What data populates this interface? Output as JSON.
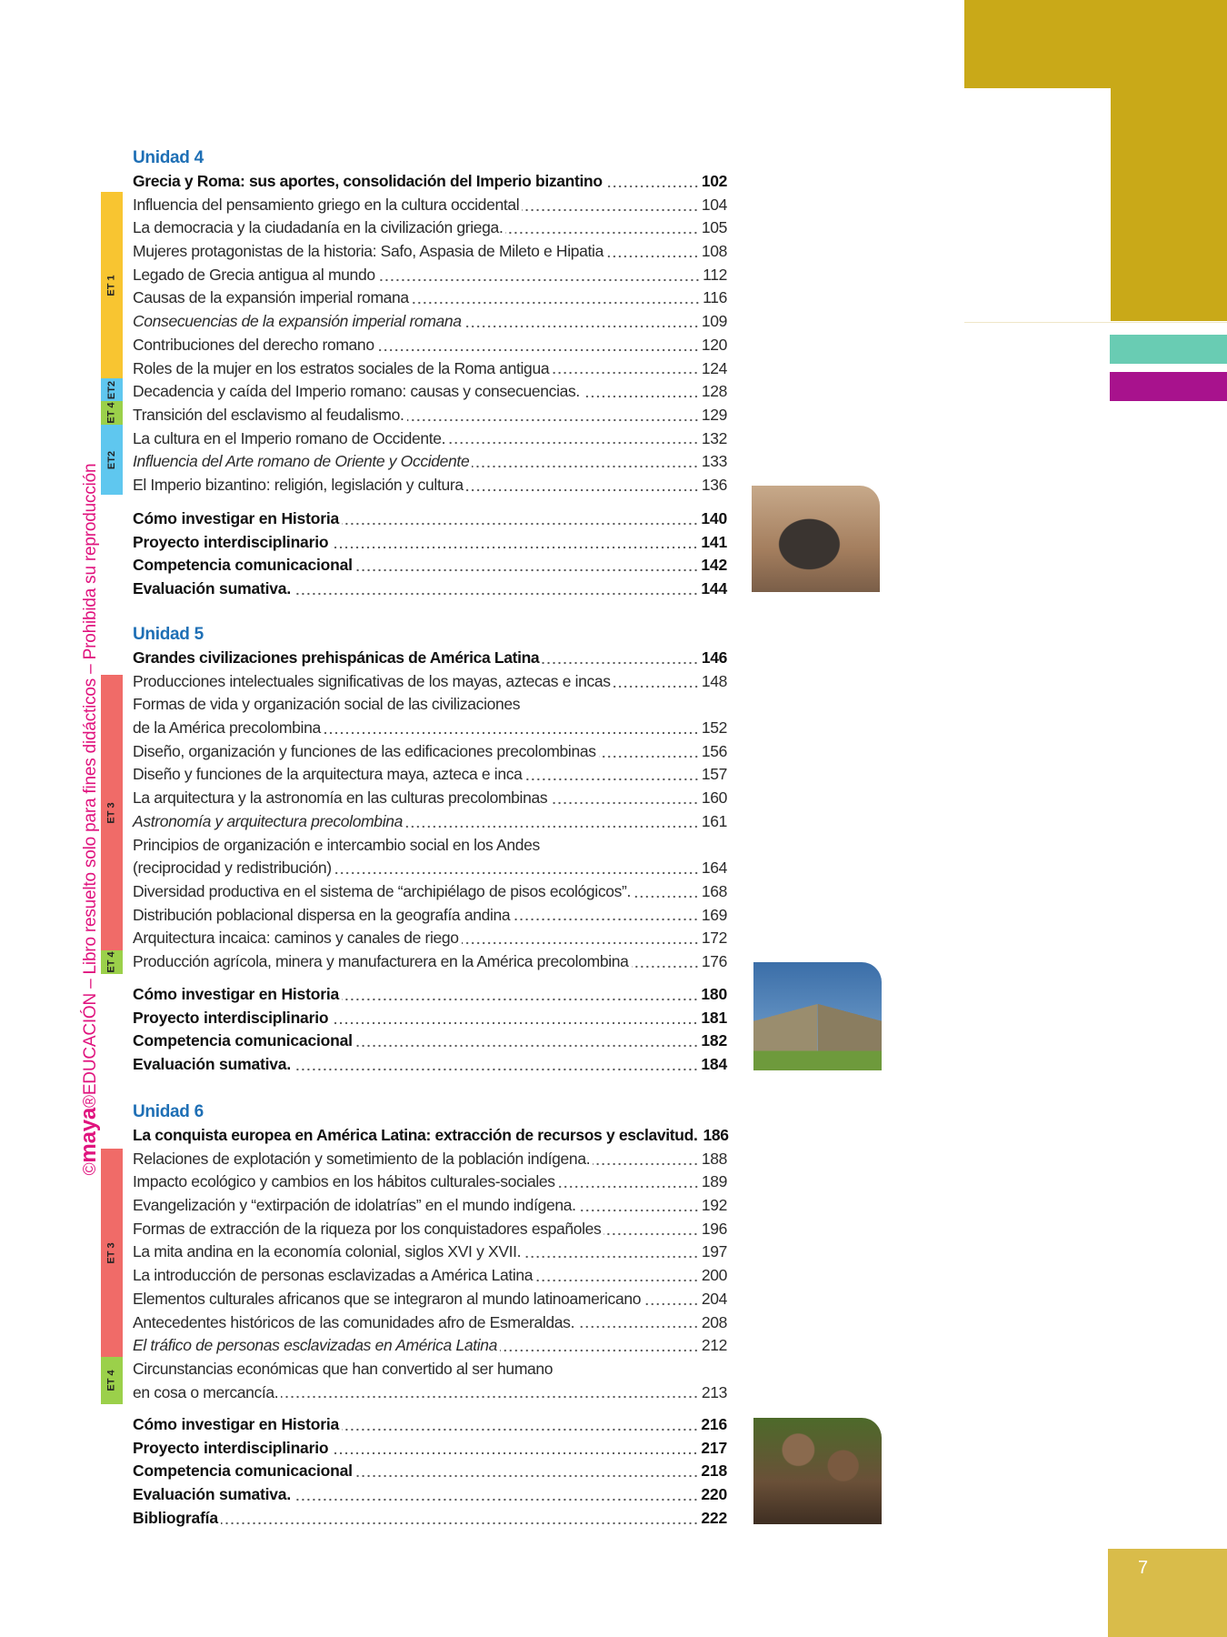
{
  "colors": {
    "gold": "#c9a918",
    "teal": "#69ccb3",
    "magenta": "#a8128d",
    "unit_blue": "#1e6fb5",
    "et1": "#f8c531",
    "et2": "#5fc7ef",
    "et3": "#f06b68",
    "et4": "#9bd04a",
    "watermark": "#e0137e",
    "page_block": "#d9bc4a"
  },
  "watermark": {
    "copyright": "©",
    "brand": "maya",
    "rest": "®EDUCACIÓN – Libro resuelto solo para fines didácticos – Prohibida su reproducción"
  },
  "page_number": "7",
  "units": [
    {
      "title": "Unidad 4",
      "items": [
        {
          "text": "Grecia y Roma: sus aportes, consolidación del Imperio bizantino",
          "page": "102",
          "style": "main"
        },
        {
          "text": "Influencia del pensamiento griego en la cultura occidental",
          "page": "104"
        },
        {
          "text": "La democracia y la ciudadanía en la civilización griega.",
          "page": "105"
        },
        {
          "text": "Mujeres protagonistas de la historia: Safo, Aspasia de Mileto e Hipatia",
          "page": "108"
        },
        {
          "text": "Legado de Grecia antigua al mundo",
          "page": "112"
        },
        {
          "text": "Causas de la expansión imperial romana",
          "page": "116"
        },
        {
          "text": "Consecuencias de la expansión imperial romana",
          "page": "109",
          "style": "it"
        },
        {
          "text": "Contribuciones del derecho romano",
          "page": "120"
        },
        {
          "text": "Roles de la mujer en los estratos sociales de la Roma antigua",
          "page": "124"
        },
        {
          "text": "Decadencia y caída del Imperio romano: causas y consecuencias.",
          "page": "128"
        },
        {
          "text": "Transición del esclavismo al feudalismo.",
          "page": "129"
        },
        {
          "text": "La cultura en el Imperio romano de Occidente.",
          "page": "132"
        },
        {
          "text": "Influencia del Arte romano de Oriente y Occidente",
          "page": "133",
          "style": "it"
        },
        {
          "text": "El Imperio bizantino: religión, legislación y cultura",
          "page": "136"
        }
      ],
      "extras": [
        {
          "text": "Cómo investigar en Historia",
          "page": "140"
        },
        {
          "text": "Proyecto interdisciplinario",
          "page": "141"
        },
        {
          "text": "Competencia comunicacional",
          "page": "142"
        },
        {
          "text": "Evaluación sumativa.",
          "page": "144"
        }
      ],
      "tags": [
        "ET 1",
        "ET2",
        "ET 4",
        "ET2"
      ]
    },
    {
      "title": "Unidad 5",
      "items": [
        {
          "text": "Grandes civilizaciones prehispánicas de América Latina",
          "page": "146",
          "style": "main"
        },
        {
          "text": "Producciones intelectuales significativas de los mayas, aztecas e incas",
          "page": "148"
        },
        {
          "text": "Formas de vida y organización social de las civilizaciones",
          "page": ""
        },
        {
          "text": "de la América precolombina",
          "page": "152"
        },
        {
          "text": "Diseño, organización y funciones de las edificaciones precolombinas",
          "page": "156"
        },
        {
          "text": "Diseño y funciones de la arquitectura maya, azteca e inca",
          "page": "157"
        },
        {
          "text": "La arquitectura y la astronomía en las culturas precolombinas",
          "page": "160"
        },
        {
          "text": "Astronomía y arquitectura precolombina",
          "page": "161",
          "style": "it"
        },
        {
          "text": "Principios de organización e intercambio social en los Andes",
          "page": ""
        },
        {
          "text": "(reciprocidad y redistribución)",
          "page": "164"
        },
        {
          "text": "Diversidad productiva en el sistema de “archipiélago de pisos ecológicos”.",
          "page": "168"
        },
        {
          "text": "Distribución poblacional dispersa en la geografía andina",
          "page": "169"
        },
        {
          "text": "Arquitectura incaica: caminos y canales de riego",
          "page": "172"
        },
        {
          "text": "Producción agrícola, minera y manufacturera en la América precolombina",
          "page": "176"
        }
      ],
      "extras": [
        {
          "text": "Cómo investigar en Historia",
          "page": "180"
        },
        {
          "text": "Proyecto interdisciplinario",
          "page": "181"
        },
        {
          "text": "Competencia comunicacional",
          "page": "182"
        },
        {
          "text": "Evaluación sumativa.",
          "page": "184"
        }
      ],
      "tags": [
        "ET 3",
        "ET 4"
      ]
    },
    {
      "title": "Unidad 6",
      "items": [
        {
          "text": "La conquista europea en América Latina: extracción de recursos y esclavitud.",
          "page": "186",
          "style": "main"
        },
        {
          "text": "Relaciones de explotación y sometimiento de la población indígena.",
          "page": "188"
        },
        {
          "text": "Impacto ecológico y cambios en los hábitos culturales-sociales",
          "page": "189"
        },
        {
          "text": "Evangelización y “extirpación de idolatrías” en el mundo indígena.",
          "page": "192"
        },
        {
          "text": "Formas de extracción de la riqueza por los conquistadores españoles",
          "page": "196"
        },
        {
          "text": "La mita andina en la economía colonial, siglos XVI y XVII.",
          "page": "197"
        },
        {
          "text": "La introducción de personas esclavizadas a América Latina",
          "page": "200"
        },
        {
          "text": "Elementos culturales africanos que se integraron al mundo latinoamericano",
          "page": "204"
        },
        {
          "text": "Antecedentes históricos de las comunidades afro de Esmeraldas.",
          "page": "208"
        },
        {
          "text": "El tráfico de personas esclavizadas en América Latina",
          "page": "212",
          "style": "it"
        },
        {
          "text": "Circunstancias económicas que han convertido al ser humano",
          "page": ""
        },
        {
          "text": "en cosa o mercancía.",
          "page": "213"
        }
      ],
      "extras": [
        {
          "text": "Cómo investigar en Historia",
          "page": "216"
        },
        {
          "text": "Proyecto interdisciplinario",
          "page": "217"
        },
        {
          "text": "Competencia comunicacional",
          "page": "218"
        },
        {
          "text": "Evaluación sumativa.",
          "page": "220"
        },
        {
          "text": "Bibliografía",
          "page": "222"
        }
      ],
      "tags": [
        "ET 3",
        "ET 4"
      ]
    }
  ]
}
